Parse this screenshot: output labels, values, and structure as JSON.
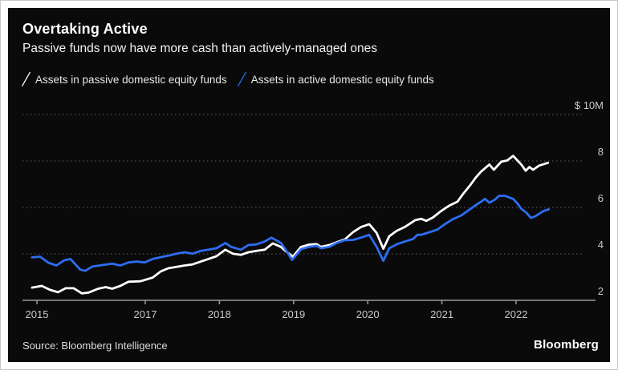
{
  "card": {
    "title": "Overtaking Active",
    "subtitle": "Passive funds now have more cash than actively-managed ones",
    "source": "Source: Bloomberg Intelligence",
    "logo": "Bloomberg"
  },
  "colors": {
    "background": "#0a0a0a",
    "passive_line": "#ffffff",
    "active_line": "#2d6df2",
    "gridline": "#5f5f5f",
    "axis": "#9a9a9a",
    "tick_label": "#c9c9c9"
  },
  "chart_data": {
    "type": "line",
    "title": "Overtaking Active",
    "subtitle": "Passive funds now have more cash than actively-managed ones",
    "unit_label": "$ 10M",
    "grid": "horizontal dotted",
    "legend_position": "top",
    "x_axis": {
      "tick_years": [
        2015,
        2017,
        2018,
        2019,
        2020,
        2021,
        2022
      ]
    },
    "y_axis": {
      "range": [
        2,
        10.6
      ],
      "ticks": [
        {
          "v": 2,
          "label": "2"
        },
        {
          "v": 4,
          "label": "4"
        },
        {
          "v": 6,
          "label": "6"
        },
        {
          "v": 8,
          "label": "8"
        },
        {
          "v": 10,
          "label": "$ 10M"
        }
      ]
    },
    "series": [
      {
        "name": "Assets in passive domestic equity funds",
        "color": "#ffffff",
        "points": [
          [
            2014.91,
            2.55
          ],
          [
            2015.09,
            2.62
          ],
          [
            2015.24,
            2.45
          ],
          [
            2015.39,
            2.35
          ],
          [
            2015.53,
            2.52
          ],
          [
            2015.68,
            2.52
          ],
          [
            2015.83,
            2.3
          ],
          [
            2015.95,
            2.33
          ],
          [
            2016.13,
            2.5
          ],
          [
            2016.27,
            2.57
          ],
          [
            2016.39,
            2.5
          ],
          [
            2016.54,
            2.62
          ],
          [
            2016.69,
            2.8
          ],
          [
            2016.91,
            2.82
          ],
          [
            2017.1,
            2.98
          ],
          [
            2017.21,
            3.25
          ],
          [
            2017.31,
            3.38
          ],
          [
            2017.42,
            3.44
          ],
          [
            2017.53,
            3.5
          ],
          [
            2017.64,
            3.55
          ],
          [
            2017.75,
            3.67
          ],
          [
            2017.85,
            3.78
          ],
          [
            2017.96,
            3.9
          ],
          [
            2018.08,
            4.18
          ],
          [
            2018.18,
            4.01
          ],
          [
            2018.29,
            3.96
          ],
          [
            2018.39,
            4.07
          ],
          [
            2018.5,
            4.13
          ],
          [
            2018.61,
            4.18
          ],
          [
            2018.72,
            4.45
          ],
          [
            2018.83,
            4.3
          ],
          [
            2018.9,
            4.1
          ],
          [
            2018.99,
            3.88
          ],
          [
            2019.1,
            4.3
          ],
          [
            2019.21,
            4.4
          ],
          [
            2019.31,
            4.42
          ],
          [
            2019.37,
            4.3
          ],
          [
            2019.48,
            4.38
          ],
          [
            2019.58,
            4.5
          ],
          [
            2019.69,
            4.62
          ],
          [
            2019.8,
            4.93
          ],
          [
            2019.91,
            5.16
          ],
          [
            2020.02,
            5.28
          ],
          [
            2020.12,
            4.9
          ],
          [
            2020.21,
            4.22
          ],
          [
            2020.29,
            4.76
          ],
          [
            2020.39,
            4.99
          ],
          [
            2020.5,
            5.16
          ],
          [
            2020.64,
            5.45
          ],
          [
            2020.72,
            5.51
          ],
          [
            2020.79,
            5.42
          ],
          [
            2020.88,
            5.57
          ],
          [
            2020.99,
            5.85
          ],
          [
            2021.1,
            6.08
          ],
          [
            2021.21,
            6.25
          ],
          [
            2021.29,
            6.6
          ],
          [
            2021.38,
            6.95
          ],
          [
            2021.46,
            7.3
          ],
          [
            2021.53,
            7.55
          ],
          [
            2021.64,
            7.85
          ],
          [
            2021.7,
            7.62
          ],
          [
            2021.8,
            7.97
          ],
          [
            2021.88,
            8.02
          ],
          [
            2021.96,
            8.22
          ],
          [
            2022.07,
            7.85
          ],
          [
            2022.13,
            7.58
          ],
          [
            2022.18,
            7.74
          ],
          [
            2022.23,
            7.62
          ],
          [
            2022.31,
            7.8
          ],
          [
            2022.43,
            7.92
          ]
        ]
      },
      {
        "name": "Assets in active domestic equity funds",
        "color": "#2d6df2",
        "points": [
          [
            2014.91,
            3.85
          ],
          [
            2015.06,
            3.88
          ],
          [
            2015.21,
            3.62
          ],
          [
            2015.36,
            3.5
          ],
          [
            2015.5,
            3.72
          ],
          [
            2015.62,
            3.78
          ],
          [
            2015.8,
            3.32
          ],
          [
            2015.89,
            3.27
          ],
          [
            2016.02,
            3.45
          ],
          [
            2016.24,
            3.53
          ],
          [
            2016.39,
            3.58
          ],
          [
            2016.54,
            3.5
          ],
          [
            2016.69,
            3.63
          ],
          [
            2016.84,
            3.67
          ],
          [
            2016.99,
            3.63
          ],
          [
            2017.1,
            3.78
          ],
          [
            2017.21,
            3.86
          ],
          [
            2017.31,
            3.92
          ],
          [
            2017.42,
            4.01
          ],
          [
            2017.53,
            4.07
          ],
          [
            2017.64,
            4.01
          ],
          [
            2017.75,
            4.13
          ],
          [
            2017.85,
            4.18
          ],
          [
            2017.96,
            4.24
          ],
          [
            2018.08,
            4.47
          ],
          [
            2018.16,
            4.3
          ],
          [
            2018.29,
            4.18
          ],
          [
            2018.39,
            4.38
          ],
          [
            2018.5,
            4.41
          ],
          [
            2018.61,
            4.53
          ],
          [
            2018.7,
            4.7
          ],
          [
            2018.83,
            4.47
          ],
          [
            2018.88,
            4.24
          ],
          [
            2018.98,
            3.74
          ],
          [
            2019.1,
            4.2
          ],
          [
            2019.21,
            4.3
          ],
          [
            2019.31,
            4.35
          ],
          [
            2019.37,
            4.24
          ],
          [
            2019.48,
            4.3
          ],
          [
            2019.58,
            4.47
          ],
          [
            2019.69,
            4.59
          ],
          [
            2019.8,
            4.6
          ],
          [
            2019.91,
            4.7
          ],
          [
            2020.02,
            4.82
          ],
          [
            2020.12,
            4.3
          ],
          [
            2020.21,
            3.7
          ],
          [
            2020.29,
            4.24
          ],
          [
            2020.39,
            4.41
          ],
          [
            2020.5,
            4.53
          ],
          [
            2020.61,
            4.64
          ],
          [
            2020.67,
            4.82
          ],
          [
            2020.72,
            4.82
          ],
          [
            2020.83,
            4.93
          ],
          [
            2020.94,
            5.05
          ],
          [
            2021.04,
            5.28
          ],
          [
            2021.15,
            5.5
          ],
          [
            2021.26,
            5.65
          ],
          [
            2021.37,
            5.9
          ],
          [
            2021.48,
            6.15
          ],
          [
            2021.53,
            6.25
          ],
          [
            2021.58,
            6.37
          ],
          [
            2021.64,
            6.2
          ],
          [
            2021.72,
            6.35
          ],
          [
            2021.77,
            6.5
          ],
          [
            2021.85,
            6.5
          ],
          [
            2021.96,
            6.37
          ],
          [
            2022.02,
            6.17
          ],
          [
            2022.07,
            5.94
          ],
          [
            2022.14,
            5.77
          ],
          [
            2022.2,
            5.55
          ],
          [
            2022.26,
            5.62
          ],
          [
            2022.37,
            5.85
          ],
          [
            2022.44,
            5.92
          ]
        ]
      }
    ]
  }
}
